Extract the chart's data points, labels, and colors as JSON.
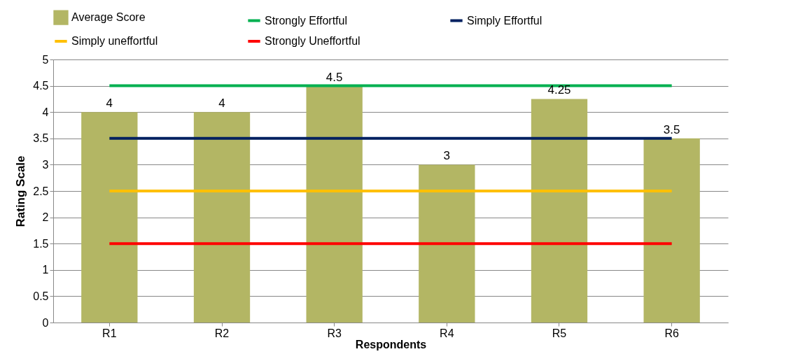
{
  "chart_data": {
    "type": "bar",
    "xlabel": "Respondents",
    "ylabel": "Rating Scale",
    "categories": [
      "R1",
      "R2",
      "R3",
      "R4",
      "R5",
      "R6"
    ],
    "series": [
      {
        "name": "Average Score",
        "color": "#b3b664",
        "values": [
          4,
          4,
          4.5,
          3,
          4.25,
          3.5
        ],
        "value_labels": [
          "4",
          "4",
          "4.5",
          "3",
          "4.25",
          "3.5"
        ]
      },
      {
        "name": "Strongly Effortful",
        "type": "line",
        "color": "#00b050",
        "values": [
          4.5,
          4.5,
          4.5,
          4.5,
          4.5,
          4.5
        ]
      },
      {
        "name": "Simply Effortful",
        "type": "line",
        "color": "#002060",
        "values": [
          3.5,
          3.5,
          3.5,
          3.5,
          3.5,
          3.5
        ]
      },
      {
        "name": "Simply uneffortful",
        "type": "line",
        "color": "#ffc000",
        "values": [
          2.5,
          2.5,
          2.5,
          2.5,
          2.5,
          2.5
        ]
      },
      {
        "name": "Strongly Uneffortful",
        "type": "line",
        "color": "#ff0000",
        "values": [
          1.5,
          1.5,
          1.5,
          1.5,
          1.5,
          1.5
        ]
      }
    ],
    "ylim": [
      0,
      5
    ],
    "yticks": [
      0,
      0.5,
      1,
      1.5,
      2,
      2.5,
      3,
      3.5,
      4,
      4.5,
      5
    ],
    "grid": "y",
    "legend": "top"
  }
}
